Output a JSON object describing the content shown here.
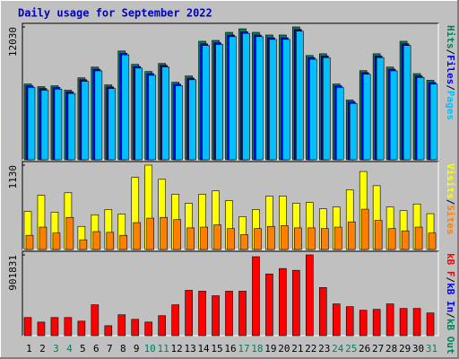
{
  "chart_data": {
    "type": "bar",
    "title": "Daily usage for September 2022",
    "title_color": "#0000c0",
    "label_separator": "/",
    "categories": [
      "1",
      "2",
      "3",
      "4",
      "5",
      "6",
      "7",
      "8",
      "9",
      "10",
      "11",
      "12",
      "13",
      "14",
      "15",
      "16",
      "17",
      "18",
      "19",
      "20",
      "21",
      "22",
      "23",
      "24",
      "25",
      "26",
      "27",
      "28",
      "29",
      "30",
      "31"
    ],
    "category_colors": [
      "#000",
      "#000",
      "#00805c",
      "#00805c",
      "#000",
      "#000",
      "#000",
      "#000",
      "#000",
      "#00805c",
      "#00805c",
      "#000",
      "#000",
      "#000",
      "#000",
      "#000",
      "#00805c",
      "#00805c",
      "#000",
      "#000",
      "#000",
      "#000",
      "#000",
      "#00805c",
      "#00805c",
      "#000",
      "#000",
      "#000",
      "#000",
      "#000",
      "#00805c"
    ],
    "panels": [
      {
        "ylim": [
          0,
          12030
        ],
        "yticks": [
          12030
        ],
        "series": [
          {
            "name": "Pages",
            "color": "#00c0ff",
            "values": [
              6550,
              6300,
              6400,
              6000,
              7100,
              8050,
              6450,
              9500,
              8300,
              7650,
              8400,
              6700,
              7250,
              10350,
              10450,
              11150,
              11450,
              11150,
              10900,
              10900,
              11650,
              9100,
              9250,
              6550,
              5100,
              7750,
              9250,
              8050,
              10350,
              7450,
              6850
            ]
          },
          {
            "name": "Files",
            "color": "#0000ff",
            "values": [
              6700,
              6450,
              6550,
              6150,
              7250,
              8200,
              6600,
              9650,
              8450,
              7800,
              8550,
              6850,
              7400,
              10500,
              10600,
              11300,
              11600,
              11300,
              11050,
              11050,
              11800,
              9250,
              9400,
              6700,
              5250,
              7900,
              9400,
              8200,
              10500,
              7600,
              7000
            ]
          },
          {
            "name": "Hits",
            "color": "#00805c",
            "values": [
              6860,
              6620,
              6700,
              6300,
              7420,
              8390,
              6780,
              9850,
              8640,
              7990,
              8720,
              7020,
              7590,
              10730,
              10810,
              11540,
              11860,
              11540,
              11300,
              11300,
              12030,
              9440,
              9600,
              6860,
              5410,
              8070,
              9600,
              8390,
              10730,
              7800,
              7200
            ]
          }
        ]
      },
      {
        "ylim": [
          0,
          1130
        ],
        "yticks": [
          1130
        ],
        "series": [
          {
            "name": "Sites",
            "color": "#ff8000",
            "values": [
              190,
              300,
              220,
              430,
              130,
              240,
              230,
              190,
              360,
              420,
              430,
              400,
              290,
              300,
              330,
              280,
              200,
              280,
              310,
              320,
              290,
              290,
              280,
              300,
              370,
              540,
              390,
              280,
              250,
              300,
              220
            ]
          },
          {
            "name": "Visits",
            "color": "#ffff00",
            "values": [
              510,
              725,
              500,
              760,
              310,
              465,
              535,
              475,
              965,
              1130,
              940,
              740,
              620,
              740,
              785,
              655,
              440,
              535,
              715,
              715,
              620,
              630,
              545,
              570,
              800,
              1045,
              855,
              570,
              520,
              610,
              480
            ]
          }
        ]
      },
      {
        "ylim": [
          0,
          901831
        ],
        "yticks": [
          901831
        ],
        "series": [
          {
            "name": "kB Out",
            "color": "#00805c",
            "values": [
              0,
              0,
              0,
              0,
              0,
              0,
              0,
              0,
              0,
              0,
              0,
              0,
              0,
              0,
              0,
              0,
              0,
              0,
              0,
              0,
              0,
              0,
              0,
              0,
              0,
              0,
              0,
              0,
              0,
              0,
              0
            ]
          },
          {
            "name": "kB In",
            "color": "#0000ff",
            "values": [
              0,
              0,
              0,
              0,
              0,
              0,
              0,
              0,
              0,
              0,
              0,
              0,
              0,
              0,
              0,
              0,
              0,
              0,
              0,
              0,
              0,
              0,
              0,
              0,
              0,
              0,
              0,
              0,
              0,
              0,
              0
            ]
          },
          {
            "name": "kB F",
            "color": "#ff0000",
            "values": [
              202660,
              152000,
              202660,
              202660,
              162130,
              344520,
              111460,
              233060,
              182390,
              152000,
              222930,
              344520,
              506650,
              496520,
              445850,
              496520,
              496520,
              881570,
              689040,
              749840,
              729580,
              901831,
              537050,
              354660,
              324260,
              283720,
              293860,
              354660,
              303990,
              303990,
              253330
            ]
          }
        ]
      }
    ]
  }
}
